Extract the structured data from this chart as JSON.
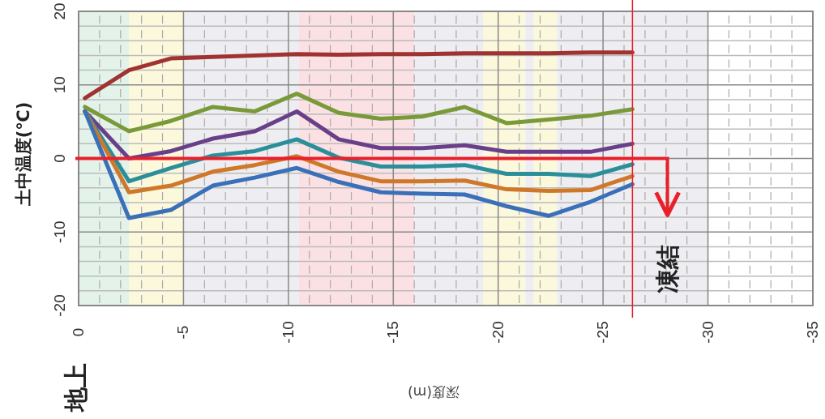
{
  "chart_data": {
    "type": "line",
    "xlabel": "深度(m)",
    "ylabel": "土中温度(℃)",
    "x": [
      -0.3,
      -2.4,
      -4.4,
      -6.4,
      -8.4,
      -10.4,
      -12.4,
      -14.4,
      -16.4,
      -18.4,
      -20.4,
      -22.4,
      -24.4,
      -26.4
    ],
    "series": [
      {
        "color": "#a03232",
        "values": [
          8.2,
          12,
          13.6,
          13.8,
          14,
          14.2,
          14.1,
          14.2,
          14.2,
          14.3,
          14.3,
          14.3,
          14.4,
          14.4
        ]
      },
      {
        "color": "#7a9a3a",
        "values": [
          7,
          3.7,
          5.1,
          7,
          6.4,
          8.8,
          6.2,
          5.4,
          5.7,
          7,
          4.8,
          5.3,
          5.8,
          6.7
        ]
      },
      {
        "color": "#6a3f8a",
        "values": [
          6.4,
          0,
          1,
          2.7,
          3.7,
          6.4,
          2.6,
          1.4,
          1.4,
          1.8,
          0.9,
          0.9,
          0.9,
          2
        ]
      },
      {
        "color": "#2a8f9a",
        "values": [
          6.4,
          -3.1,
          -1.3,
          0.4,
          1,
          2.6,
          0.1,
          -1.1,
          -1.1,
          -0.9,
          -2.1,
          -2.1,
          -2.4,
          -0.8
        ]
      },
      {
        "color": "#d0782a",
        "values": [
          6.4,
          -4.6,
          -3.7,
          -1.8,
          -0.9,
          0.3,
          -1.8,
          -3.1,
          -3.1,
          -3,
          -4.2,
          -4.4,
          -4.3,
          -2.4
        ]
      },
      {
        "color": "#3a70b8",
        "values": [
          6.4,
          -8.1,
          -7,
          -3.7,
          -2.6,
          -1.3,
          -3.2,
          -4.6,
          -4.8,
          -4.9,
          -6.5,
          -7.8,
          -5.9,
          -3.5
        ]
      }
    ],
    "xlim": [
      0,
      -35
    ],
    "xticks": [
      0,
      -5,
      -10,
      -15,
      -20,
      -25,
      -30,
      -35
    ],
    "ylim": [
      -20,
      20
    ],
    "yticks": [
      -20,
      -10,
      0,
      10,
      20
    ],
    "grid": true,
    "line_style": "solid",
    "ref_lines": [
      {
        "axis": "x",
        "value": -26.4,
        "color": "#e8202a"
      }
    ],
    "bands": [
      {
        "axis": "x",
        "from": 0,
        "to": -2.4,
        "color": "#e3f3ea"
      },
      {
        "axis": "x",
        "from": -2.4,
        "to": -5,
        "color": "#fbf8dc"
      },
      {
        "axis": "x",
        "from": -5,
        "to": -10.5,
        "color": "#eeeef2"
      },
      {
        "axis": "x",
        "from": -10.5,
        "to": -16,
        "color": "#fbe0e4"
      },
      {
        "axis": "x",
        "from": -16,
        "to": -19.3,
        "color": "#eeeef2"
      },
      {
        "axis": "x",
        "from": -19.3,
        "to": -21.3,
        "color": "#fbf8dc"
      },
      {
        "axis": "x",
        "from": -21.3,
        "to": -21.7,
        "color": "#eeeef2"
      },
      {
        "axis": "x",
        "from": -21.7,
        "to": -22.8,
        "color": "#fbf8dc"
      },
      {
        "axis": "x",
        "from": -22.8,
        "to": -30,
        "color": "#eeeef2"
      }
    ],
    "annotations": [
      "凍結",
      "地上"
    ]
  }
}
